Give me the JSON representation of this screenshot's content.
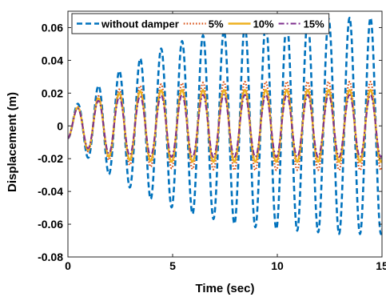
{
  "chart_data": {
    "type": "line",
    "xlabel": "Time (sec)",
    "ylabel": "Displacement (m)",
    "xlim": [
      0,
      15
    ],
    "ylim": [
      -0.08,
      0.07
    ],
    "xticks": [
      0,
      5,
      10,
      15
    ],
    "xtick_labels": [
      "0",
      "5",
      "10",
      "15"
    ],
    "yticks": [
      -0.08,
      -0.06,
      -0.04,
      -0.02,
      0,
      0.02,
      0.04,
      0.06
    ],
    "ytick_labels": [
      "-0.08",
      "-0.06",
      "-0.04",
      "-0.02",
      "0",
      "0.02",
      "0.04",
      "0.06"
    ],
    "grid": false,
    "legend_position": "top",
    "oscillation": {
      "period_sec": 1.0,
      "start_sec": 0.2,
      "steps_per_sec": 40
    },
    "series": [
      {
        "name": "without damper",
        "color": "#0072BD",
        "dash": "dashed",
        "amplitude_envelope": {
          "t": [
            0,
            1,
            2,
            3,
            4,
            5,
            6,
            7,
            8,
            9,
            10,
            11,
            12,
            13,
            14,
            15
          ],
          "amp": [
            0.008,
            0.02,
            0.03,
            0.038,
            0.045,
            0.05,
            0.054,
            0.057,
            0.06,
            0.062,
            0.063,
            0.064,
            0.065,
            0.066,
            0.066,
            0.066
          ]
        }
      },
      {
        "name": "5%",
        "color": "#D95319",
        "dash": "dotted",
        "amplitude_envelope": {
          "t": [
            0,
            1,
            2,
            3,
            5,
            8,
            15
          ],
          "amp": [
            0.008,
            0.016,
            0.021,
            0.024,
            0.026,
            0.027,
            0.027
          ]
        }
      },
      {
        "name": "10%",
        "color": "#EDB120",
        "dash": "solid",
        "amplitude_envelope": {
          "t": [
            0,
            1,
            2,
            3,
            5,
            15
          ],
          "amp": [
            0.008,
            0.015,
            0.019,
            0.021,
            0.022,
            0.022
          ]
        }
      },
      {
        "name": "15%",
        "color": "#7E2F8E",
        "dash": "dashdot",
        "amplitude_envelope": {
          "t": [
            0,
            1,
            2,
            3,
            5,
            15
          ],
          "amp": [
            0.008,
            0.014,
            0.017,
            0.018,
            0.019,
            0.019
          ]
        }
      }
    ]
  }
}
